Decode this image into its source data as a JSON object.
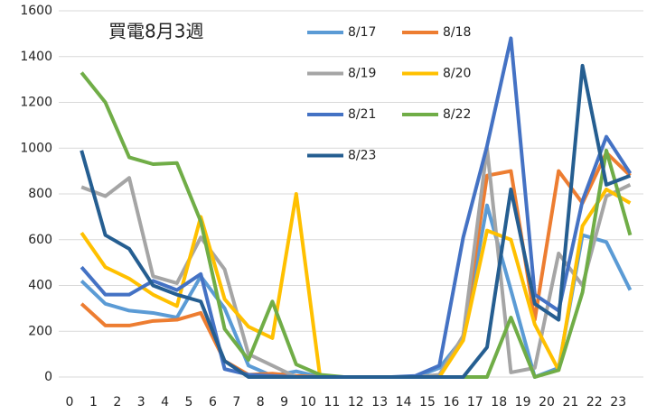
{
  "chart_data": {
    "type": "line",
    "title": "買電8月3週",
    "categories": [
      "0",
      "1",
      "2",
      "3",
      "4",
      "5",
      "6",
      "7",
      "8",
      "9",
      "10",
      "11",
      "12",
      "13",
      "14",
      "15",
      "16",
      "17",
      "18",
      "19",
      "20",
      "21",
      "22",
      "23"
    ],
    "ylim": [
      0,
      1600
    ],
    "yticks": [
      0,
      200,
      400,
      600,
      800,
      1000,
      1200,
      1400,
      1600
    ],
    "grid": true,
    "series": [
      {
        "name": "8/17",
        "color": "#5B9BD5",
        "values": [
          420,
          320,
          290,
          280,
          260,
          440,
          300,
          50,
          5,
          25,
          0,
          0,
          0,
          0,
          0,
          40,
          170,
          750,
          380,
          0,
          40,
          620,
          590,
          380
        ]
      },
      {
        "name": "8/18",
        "color": "#ED7D31",
        "values": [
          320,
          225,
          225,
          245,
          250,
          280,
          70,
          10,
          15,
          5,
          0,
          0,
          0,
          0,
          0,
          0,
          180,
          880,
          900,
          250,
          900,
          760,
          980,
          880
        ]
      },
      {
        "name": "8/19",
        "color": "#A5A5A5",
        "values": [
          830,
          790,
          870,
          440,
          410,
          610,
          470,
          100,
          50,
          0,
          0,
          0,
          0,
          0,
          0,
          10,
          180,
          1000,
          20,
          40,
          540,
          400,
          790,
          840
        ]
      },
      {
        "name": "8/20",
        "color": "#FFC000",
        "values": [
          630,
          480,
          430,
          360,
          310,
          700,
          340,
          220,
          170,
          800,
          0,
          0,
          0,
          0,
          0,
          0,
          160,
          640,
          600,
          230,
          30,
          660,
          820,
          760
        ]
      },
      {
        "name": "8/21",
        "color": "#4472C4",
        "values": [
          480,
          360,
          360,
          420,
          380,
          450,
          35,
          10,
          5,
          0,
          0,
          0,
          0,
          0,
          5,
          50,
          610,
          1010,
          1480,
          360,
          290,
          770,
          1050,
          890
        ]
      },
      {
        "name": "8/22",
        "color": "#70AD47",
        "values": [
          1330,
          1200,
          960,
          930,
          935,
          680,
          210,
          75,
          330,
          55,
          10,
          0,
          0,
          0,
          0,
          0,
          0,
          0,
          260,
          0,
          30,
          370,
          990,
          620
        ]
      },
      {
        "name": "8/23",
        "color": "#255E91",
        "values": [
          990,
          620,
          560,
          400,
          360,
          330,
          70,
          0,
          0,
          0,
          0,
          0,
          0,
          0,
          0,
          0,
          0,
          130,
          820,
          320,
          250,
          1360,
          840,
          880
        ]
      }
    ]
  }
}
